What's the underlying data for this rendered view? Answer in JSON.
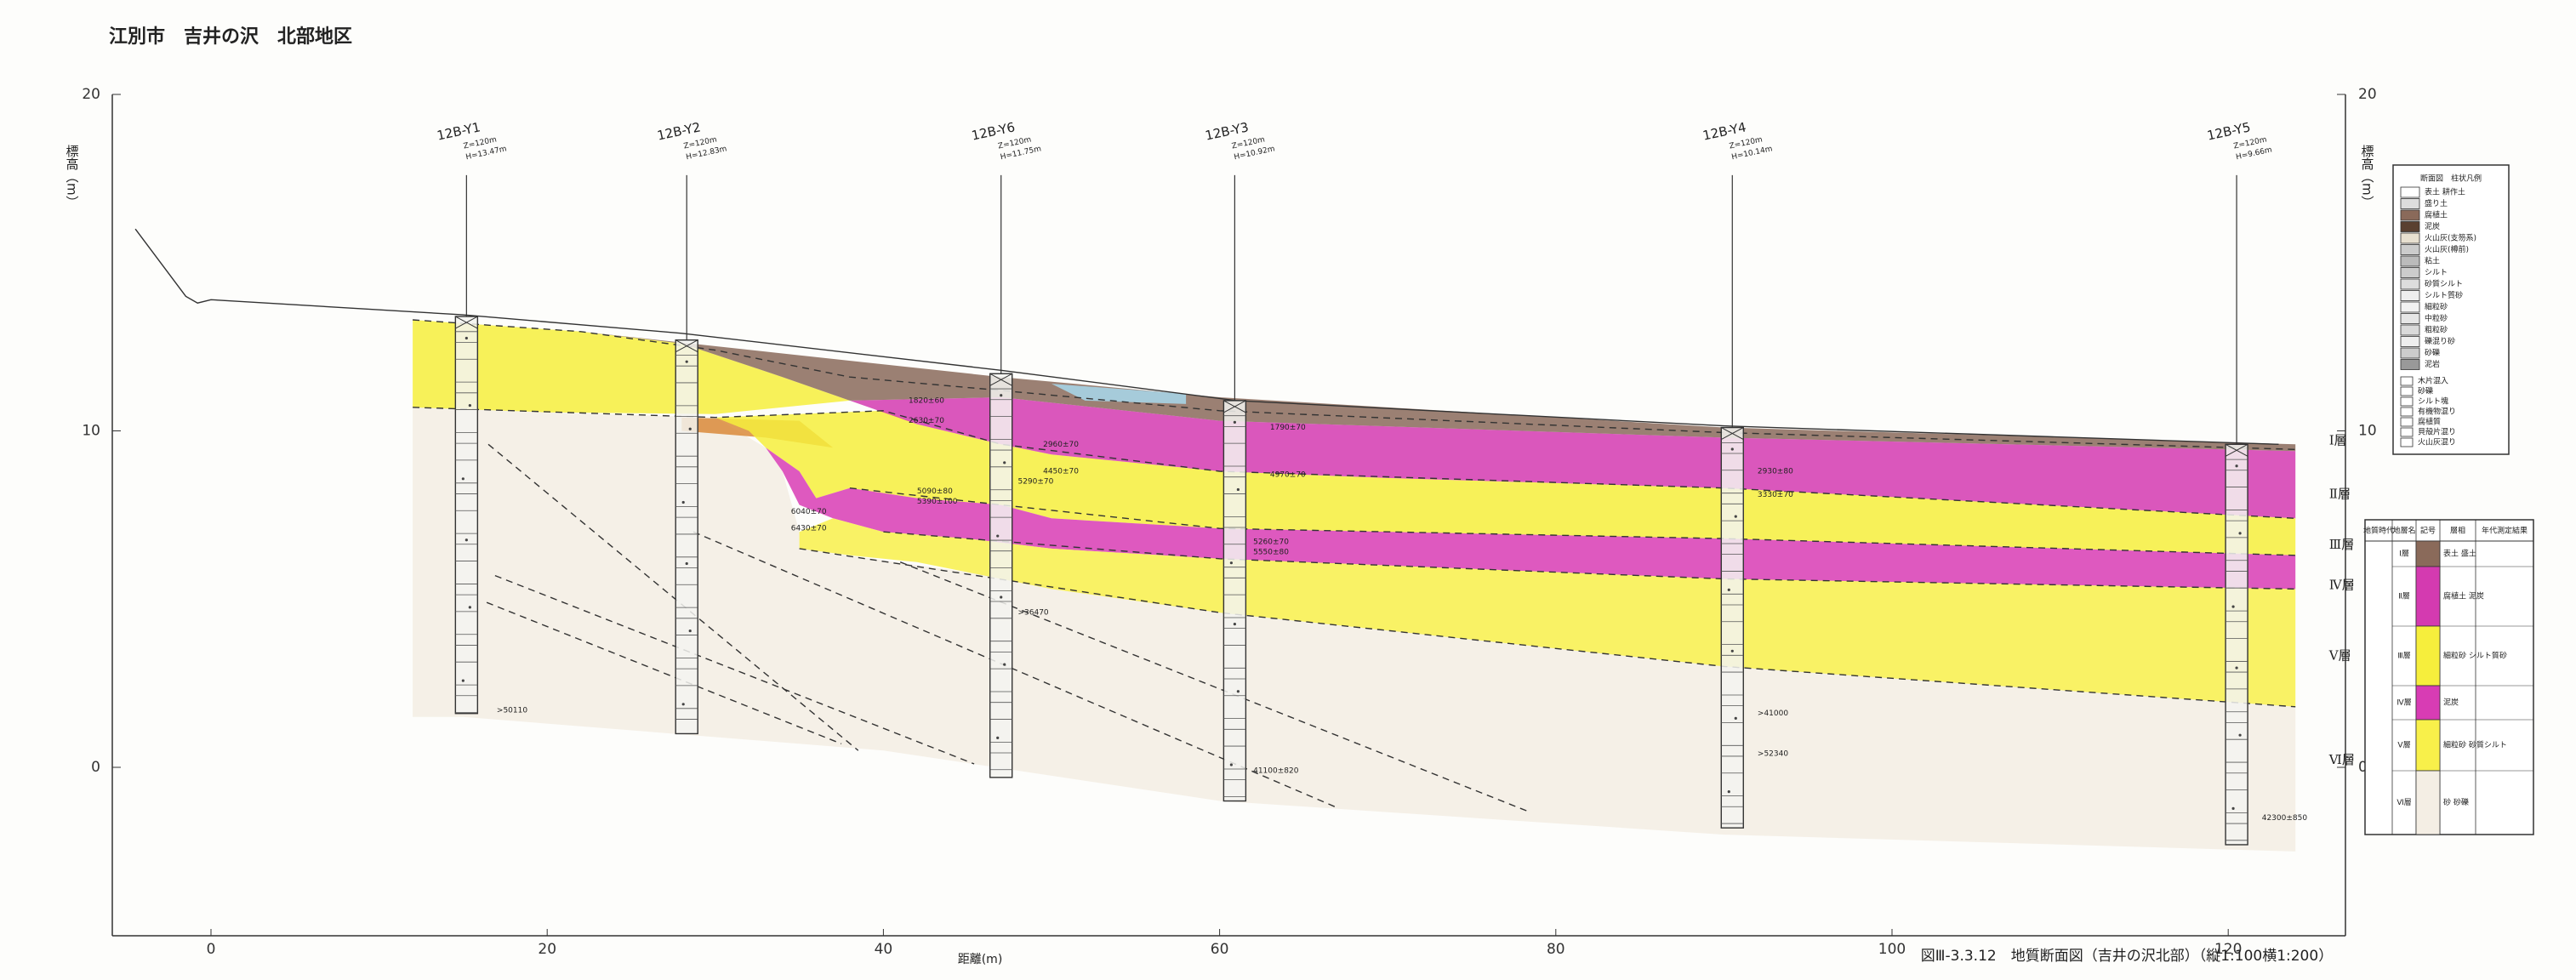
{
  "title": "江別市　吉井の沢　北部地区",
  "caption": "図Ⅲ-3.3.12　地質断面図（吉井の沢北部）（縦1:100横1:200）",
  "y_axis_label": "標高（m）",
  "x_axis_label": "距離(m)",
  "x_ticks": [
    0,
    20,
    40,
    60,
    80,
    100,
    120
  ],
  "y_ticks": [
    0,
    10,
    20
  ],
  "boreholes": [
    {
      "name": "12B-Y1",
      "length": "Z=120m",
      "elevation": "H=13.47m"
    },
    {
      "name": "12B-Y2",
      "length": "Z=120m",
      "elevation": "H=12.83m"
    },
    {
      "name": "12B-Y6",
      "length": "Z=120m",
      "elevation": "H=11.75m"
    },
    {
      "name": "12B-Y3",
      "length": "Z=120m",
      "elevation": "H=10.92m"
    },
    {
      "name": "12B-Y4",
      "length": "Z=120m",
      "elevation": "H=10.14m"
    },
    {
      "name": "12B-Y5",
      "length": "Z=120m",
      "elevation": "H=9.66m"
    }
  ],
  "layer_labels": [
    "Ⅰ層",
    "Ⅱ層",
    "Ⅲ層",
    "Ⅳ層",
    "Ⅴ層",
    "Ⅵ層"
  ],
  "annotations": [
    ">50110",
    "1820±60",
    "2630±70",
    "2960±70",
    "4450±70",
    "5090±80",
    "5290±70",
    "5390±100",
    "6040±70",
    "6430±70",
    ">36470",
    "1790±70",
    "4970±70",
    "5260±70",
    "5550±80",
    "41100±820",
    "2930±80",
    "3330±70",
    ">41000",
    ">52340",
    "42300±850"
  ],
  "legend": {
    "title": "断面図　柱状凡例",
    "items": [
      "表土 耕作土",
      "盛り土",
      "腐植土",
      "泥炭",
      "火山灰(支笏系)",
      "火山灰(樽前)",
      "粘土",
      "シルト",
      "砂質シルト",
      "シルト質砂",
      "細粒砂",
      "中粒砂",
      "粗粒砂",
      "礫混り砂",
      "砂礫",
      "泥岩"
    ],
    "notes": [
      "木片混入",
      "砂礫",
      "シルト塊",
      "有機物混り",
      "腐植質",
      "貝殻片混り",
      "火山灰混り"
    ]
  },
  "stratigraphy_table": {
    "headers": [
      "地質時代",
      "地層名",
      "記号",
      "層相",
      "年代測定結果"
    ],
    "rows": [
      [
        "Ⅰ層",
        "表土 盛土"
      ],
      [
        "Ⅱ層",
        "腐植土 泥炭"
      ],
      [
        "Ⅲ層",
        "細粒砂 シルト質砂"
      ],
      [
        "Ⅳ層",
        "泥炭"
      ],
      [
        "Ⅴ層",
        "細粒砂 砂質シルト"
      ],
      [
        "Ⅵ層",
        "砂 砂礫"
      ]
    ]
  }
}
